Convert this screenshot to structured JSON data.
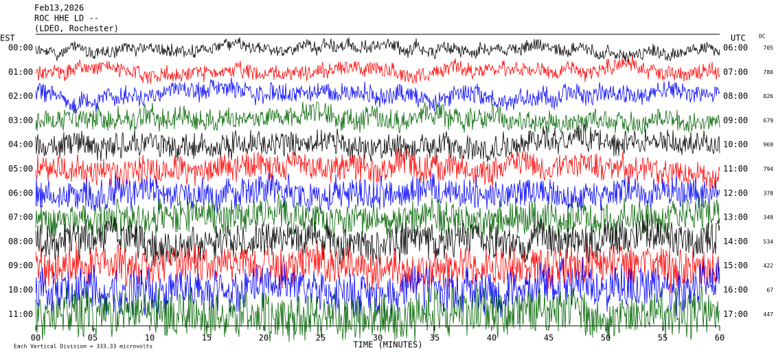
{
  "header": {
    "date": "Feb13,2026",
    "station": "ROC HHE LD --",
    "location": "(LDEO, Rochester)"
  },
  "left_axis": {
    "title": "EST",
    "labels": [
      "00:00",
      "01:00",
      "02:00",
      "03:00",
      "04:00",
      "05:00",
      "06:00",
      "07:00",
      "08:00",
      "09:00",
      "10:00",
      "11:00"
    ]
  },
  "right_axis": {
    "title": "UTC",
    "labels": [
      "06:00",
      "07:00",
      "08:00",
      "09:00",
      "10:00",
      "11:00",
      "12:00",
      "13:00",
      "14:00",
      "15:00",
      "16:00",
      "17:00"
    ]
  },
  "dc": {
    "title": "DC",
    "values": [
      705,
      780,
      826,
      679,
      969,
      794,
      378,
      348,
      534,
      422,
      67,
      447
    ]
  },
  "x_axis": {
    "title": "TIME (MINUTES)",
    "labels": [
      "00",
      "05",
      "10",
      "15",
      "20",
      "25",
      "30",
      "35",
      "40",
      "45",
      "50",
      "55",
      "60"
    ]
  },
  "footer": "Each Vertical Division =  333.33 microvolts"
}
